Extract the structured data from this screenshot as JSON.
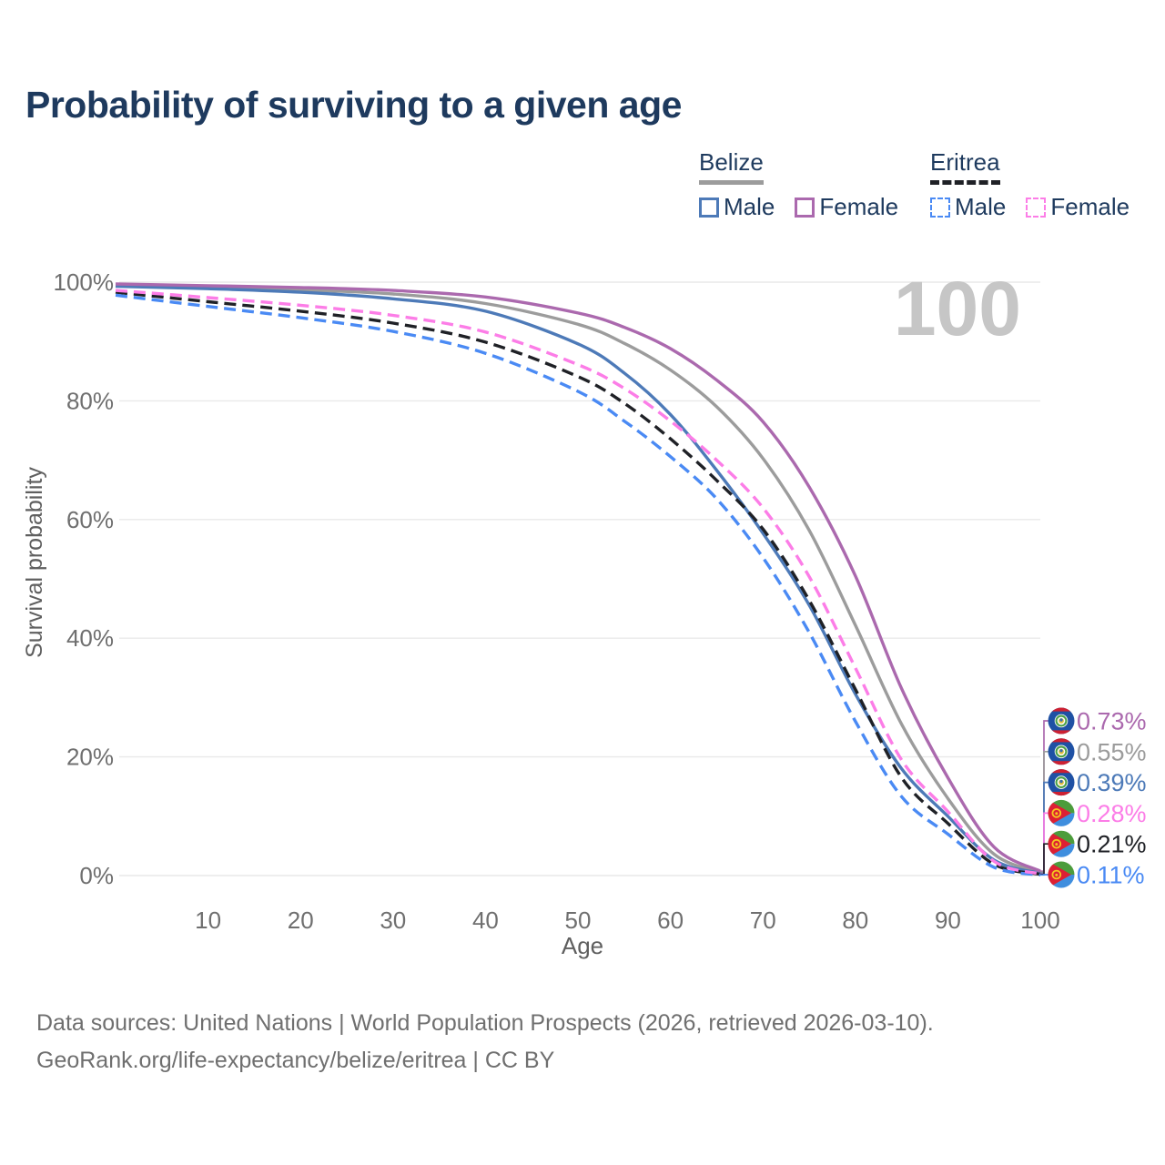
{
  "title": "Probability of surviving to a given age",
  "watermark": "100",
  "colors": {
    "title_navy": "#1e3a5e",
    "axis_text": "#6f6f6f",
    "grid": "#e9e9e9",
    "watermark_gray": "#c6c6c6",
    "belize_male": "#4d7ab8",
    "belize_female": "#ab69ae",
    "belize_both": "#9c9c9c",
    "eritrea_male": "#4a8af4",
    "eritrea_female": "#fc7de7",
    "eritrea_both": "#1f2126"
  },
  "legend": {
    "groups": [
      {
        "name": "Belize",
        "line_style": "solid",
        "entries": [
          {
            "label": "Male"
          },
          {
            "label": "Female"
          }
        ]
      },
      {
        "name": "Eritrea",
        "line_style": "dashed",
        "entries": [
          {
            "label": "Male"
          },
          {
            "label": "Female"
          }
        ]
      }
    ]
  },
  "chart_data": {
    "type": "line",
    "title": "Probability of surviving to a given age",
    "xlabel": "Age",
    "ylabel": "Survival probability",
    "xlim": [
      0,
      100
    ],
    "ylim": [
      0,
      100
    ],
    "grid": true,
    "legend_position": "top-right",
    "x_ticks": [
      10,
      20,
      30,
      40,
      50,
      60,
      70,
      80,
      90,
      100
    ],
    "y_ticks": [
      0,
      20,
      40,
      60,
      80,
      100
    ],
    "y_tick_suffix": "%",
    "x": [
      0,
      10,
      20,
      30,
      40,
      50,
      55,
      60,
      65,
      70,
      75,
      80,
      85,
      90,
      95,
      100
    ],
    "series": [
      {
        "name": "Belize Female",
        "country": "Belize",
        "sex": "Female",
        "style": "solid",
        "color": "#ab69ae",
        "flag": "belize",
        "end_label": "0.73%",
        "values": [
          99.7,
          99.4,
          99.1,
          98.6,
          97.5,
          94.8,
          92.4,
          88.8,
          83.5,
          76.5,
          65.5,
          50.5,
          31.5,
          16.5,
          4.8,
          0.73
        ]
      },
      {
        "name": "Belize Both sexes",
        "country": "Belize",
        "sex": "Both",
        "style": "solid",
        "color": "#9c9c9c",
        "flag": "belize",
        "end_label": "0.55%",
        "values": [
          99.5,
          99.1,
          98.7,
          98.0,
          96.4,
          92.9,
          89.7,
          85.2,
          79.0,
          70.3,
          58.2,
          42.2,
          25.5,
          13.0,
          3.6,
          0.55
        ]
      },
      {
        "name": "Belize Male",
        "country": "Belize",
        "sex": "Male",
        "style": "solid",
        "color": "#4d7ab8",
        "flag": "belize",
        "end_label": "0.39%",
        "values": [
          99.3,
          98.9,
          98.3,
          97.2,
          95.1,
          89.6,
          84.7,
          77.7,
          68.3,
          57.7,
          45.6,
          30.6,
          18.0,
          10.0,
          2.6,
          0.39
        ]
      },
      {
        "name": "Eritrea Female",
        "country": "Eritrea",
        "sex": "Female",
        "style": "dashed",
        "color": "#fc7de7",
        "flag": "eritrea",
        "end_label": "0.28%",
        "values": [
          98.6,
          97.4,
          96.1,
          94.4,
          91.6,
          86.1,
          82.1,
          76.6,
          70.0,
          62.0,
          50.4,
          35.0,
          19.5,
          10.8,
          2.4,
          0.28
        ]
      },
      {
        "name": "Eritrea Both sexes",
        "country": "Eritrea",
        "sex": "Both",
        "style": "dashed",
        "color": "#1f2126",
        "flag": "eritrea",
        "end_label": "0.21%",
        "values": [
          98.3,
          96.7,
          95.1,
          93.1,
          89.9,
          84.1,
          79.6,
          73.6,
          66.6,
          58.4,
          46.4,
          31.4,
          16.5,
          8.8,
          1.9,
          0.21
        ]
      },
      {
        "name": "Eritrea Male",
        "country": "Eritrea",
        "sex": "Male",
        "style": "dashed",
        "color": "#4a8af4",
        "flag": "eritrea",
        "end_label": "0.11%",
        "values": [
          97.8,
          95.9,
          94.0,
          91.7,
          88.0,
          81.6,
          76.6,
          70.6,
          63.5,
          53.6,
          41.0,
          26.0,
          13.3,
          7.0,
          1.4,
          0.11
        ]
      }
    ]
  },
  "footer": {
    "line1": "Data sources: United Nations | World Population Prospects (2026, retrieved 2026-03-10).",
    "line2": "GeoRank.org/life-expectancy/belize/eritrea | CC BY"
  }
}
